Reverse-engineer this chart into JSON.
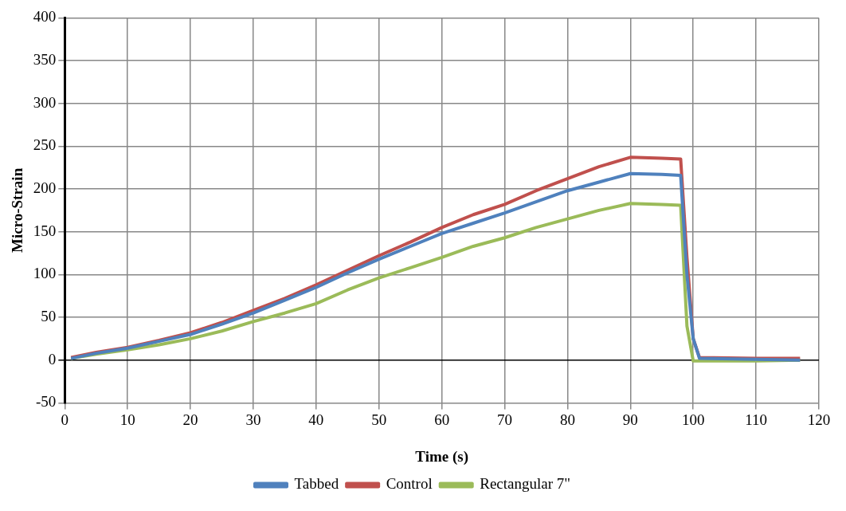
{
  "chart_data": {
    "type": "line",
    "xlabel": "Time (s)",
    "ylabel": "Micro-Strain",
    "xlim": [
      0,
      120
    ],
    "xticks": [
      0,
      10,
      20,
      30,
      40,
      50,
      60,
      70,
      80,
      90,
      100,
      110,
      120
    ],
    "ylim": [
      -50,
      400
    ],
    "yticks": [
      -50,
      0,
      50,
      100,
      150,
      200,
      250,
      300,
      350,
      400
    ],
    "grid": true,
    "legend": "bottom",
    "marker": "none",
    "line_style": "solid",
    "series": [
      {
        "name": "Tabbed",
        "color": "#4f81bd",
        "x": [
          1,
          5,
          10,
          15,
          20,
          25,
          30,
          35,
          40,
          45,
          50,
          55,
          60,
          65,
          70,
          75,
          80,
          85,
          90,
          95,
          98,
          99,
          100,
          101,
          110,
          117
        ],
        "values": [
          2,
          8,
          14,
          22,
          30,
          42,
          55,
          70,
          85,
          102,
          118,
          133,
          148,
          160,
          172,
          185,
          198,
          208,
          218,
          217,
          216,
          100,
          25,
          2,
          1,
          0
        ]
      },
      {
        "name": "Control",
        "color": "#c0504d",
        "x": [
          1,
          5,
          10,
          15,
          20,
          25,
          30,
          35,
          40,
          45,
          50,
          55,
          60,
          65,
          70,
          75,
          80,
          85,
          90,
          95,
          98,
          99,
          100,
          101,
          110,
          117
        ],
        "values": [
          3,
          9,
          15,
          23,
          32,
          44,
          58,
          72,
          88,
          105,
          122,
          138,
          155,
          170,
          182,
          198,
          212,
          226,
          237,
          236,
          235,
          120,
          25,
          3,
          2,
          2
        ]
      },
      {
        "name": "Rectangular 7\"",
        "color": "#9bbb59",
        "x": [
          1,
          5,
          10,
          15,
          20,
          25,
          30,
          35,
          40,
          45,
          50,
          55,
          60,
          65,
          70,
          75,
          80,
          85,
          90,
          95,
          98,
          99,
          100,
          110,
          117
        ],
        "values": [
          2,
          7,
          12,
          18,
          25,
          34,
          45,
          55,
          66,
          82,
          96,
          108,
          120,
          133,
          143,
          155,
          165,
          175,
          183,
          182,
          181,
          40,
          -1,
          -1,
          0
        ]
      }
    ]
  }
}
